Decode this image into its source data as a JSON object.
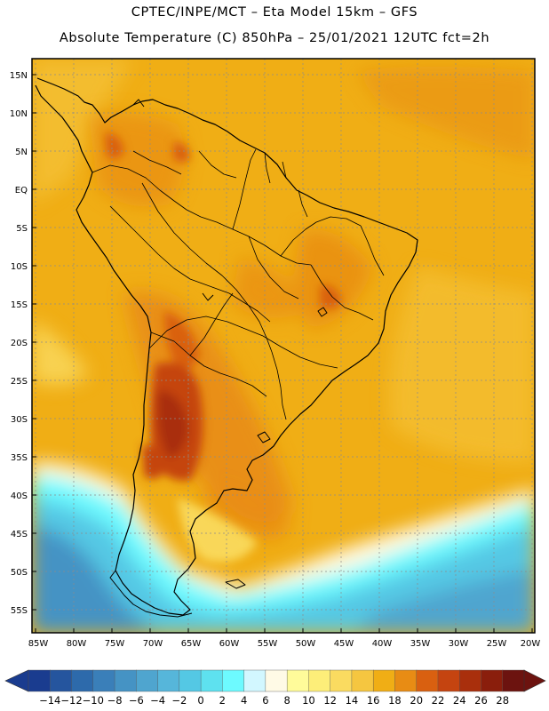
{
  "header": {
    "line1": "CPTEC/INPE/MCT –  Eta Model 15km – GFS",
    "line2": "Absolute Temperature (C) 850hPa – 25/01/2021 12UTC fct=2h"
  },
  "map": {
    "lat_labels": [
      "15N",
      "10N",
      "5N",
      "EQ",
      "5S",
      "10S",
      "15S",
      "20S",
      "25S",
      "30S",
      "35S",
      "40S",
      "45S",
      "50S",
      "55S"
    ],
    "lon_labels": [
      "85W",
      "80W",
      "75W",
      "70W",
      "65W",
      "60W",
      "55W",
      "50W",
      "45W",
      "40W",
      "35W",
      "30W",
      "25W",
      "20W"
    ],
    "lat_range": [
      17.5,
      -57.5
    ],
    "lon_range": [
      -85.5,
      -20
    ],
    "grid": true,
    "grid_step_degrees": 5
  },
  "colorbar": {
    "labels": [
      "-14",
      "-12",
      "-10",
      "-8",
      "-6",
      "-4",
      "-2",
      "0",
      "2",
      "4",
      "6",
      "8",
      "10",
      "12",
      "14",
      "16",
      "18",
      "20",
      "22",
      "24",
      "26",
      "28"
    ],
    "colors": [
      "#1a3c8f",
      "#25559e",
      "#2d6aab",
      "#3a7fb9",
      "#4593c4",
      "#4fa5cf",
      "#56b6da",
      "#54c8e4",
      "#5ee1ef",
      "#6dfaff",
      "#d2f7ff",
      "#fffae6",
      "#fffb9a",
      "#fdee79",
      "#fadb60",
      "#f5c640",
      "#f0ae15",
      "#e88c14",
      "#d96010",
      "#c54410",
      "#a92f0c",
      "#8a1e0c",
      "#6c130f"
    ]
  }
}
